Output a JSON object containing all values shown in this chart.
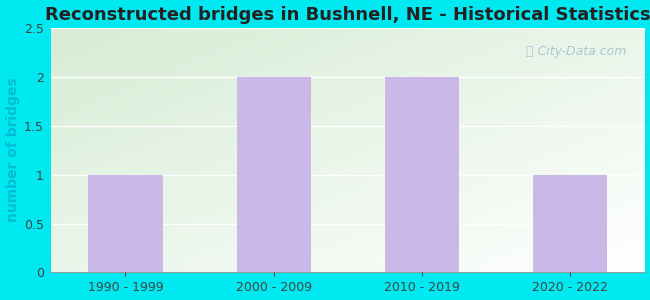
{
  "title": "Reconstructed bridges in Bushnell, NE - Historical Statistics",
  "categories": [
    "1990 - 1999",
    "2000 - 2009",
    "2010 - 2019",
    "2020 - 2022"
  ],
  "values": [
    1,
    2,
    2,
    1
  ],
  "bar_color": "#c9b8e8",
  "ylabel": "number of bridges",
  "ylim": [
    0,
    2.5
  ],
  "yticks": [
    0,
    0.5,
    1,
    1.5,
    2,
    2.5
  ],
  "background_outer": "#00e8f0",
  "background_plot_topleft": "#d6ecd4",
  "background_plot_bottomright": "#ffffff",
  "grid_color": "#ffffff",
  "title_fontsize": 13,
  "ylabel_fontsize": 10,
  "tick_fontsize": 9,
  "watermark_text": "City-Data.com",
  "watermark_color": "#9fbfcc",
  "bar_width": 0.5
}
